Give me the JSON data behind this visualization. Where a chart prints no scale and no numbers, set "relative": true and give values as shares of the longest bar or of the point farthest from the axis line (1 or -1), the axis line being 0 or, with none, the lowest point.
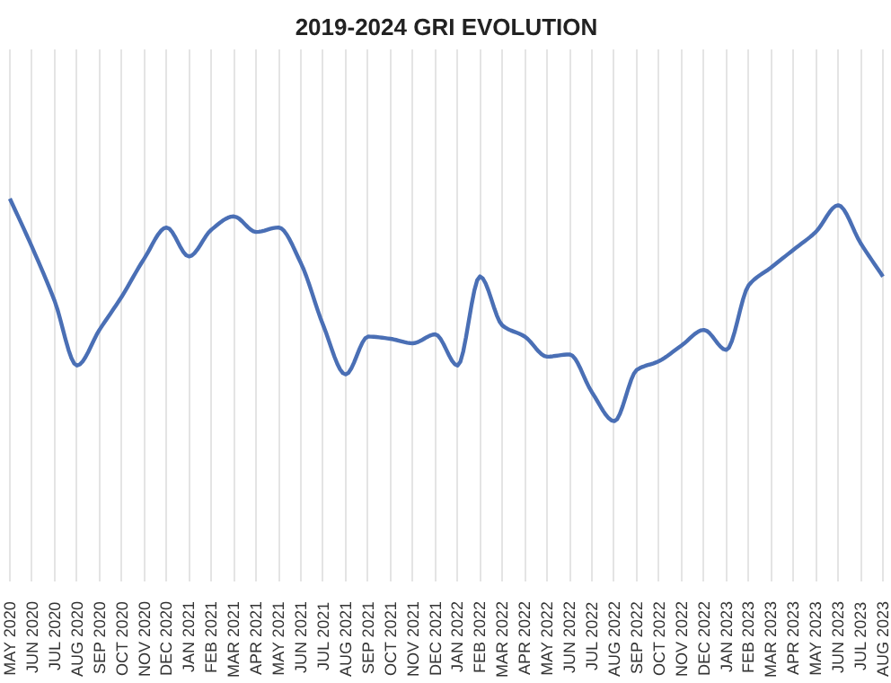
{
  "chart_data": {
    "type": "line",
    "title": "2019-2024 GRI EVOLUTION",
    "relative": true,
    "grid": "x",
    "marker": "none",
    "line_style": "solid",
    "categories": [
      "MAY 2020",
      "JUN 2020",
      "JUL 2020",
      "AUG 2020",
      "SEP 2020",
      "OCT 2020",
      "NOV 2020",
      "DEC 2020",
      "JAN 2021",
      "FEB 2021",
      "MAR 2021",
      "APR 2021",
      "MAY 2021",
      "JUN 2021",
      "JUL 2021",
      "AUG 2021",
      "SEP 2021",
      "OCT 2021",
      "NOV 2021",
      "DEC 2021",
      "JAN 2022",
      "FEB 2022",
      "MAR 2022",
      "APR 2022",
      "MAY 2022",
      "JUN 2022",
      "JUL 2022",
      "AUG 2022",
      "SEP 2022",
      "OCT 2022",
      "NOV 2022",
      "DEC 2022",
      "JAN 2023",
      "FEB 2023",
      "MAR 2023",
      "APR 2023",
      "MAY 2023",
      "JUN 2023",
      "JUL 2023",
      "AUG 2023"
    ],
    "series": [
      {
        "color": "#4a6fb5",
        "values": [
          1.0,
          0.78,
          0.54,
          0.25,
          0.41,
          0.56,
          0.73,
          0.87,
          0.74,
          0.86,
          0.92,
          0.85,
          0.87,
          0.71,
          0.43,
          0.21,
          0.38,
          0.37,
          0.35,
          0.39,
          0.25,
          0.65,
          0.43,
          0.38,
          0.29,
          0.3,
          0.13,
          0.0,
          0.23,
          0.27,
          0.34,
          0.41,
          0.32,
          0.61,
          0.69,
          0.77,
          0.85,
          0.97,
          0.8,
          0.65
        ]
      }
    ]
  }
}
